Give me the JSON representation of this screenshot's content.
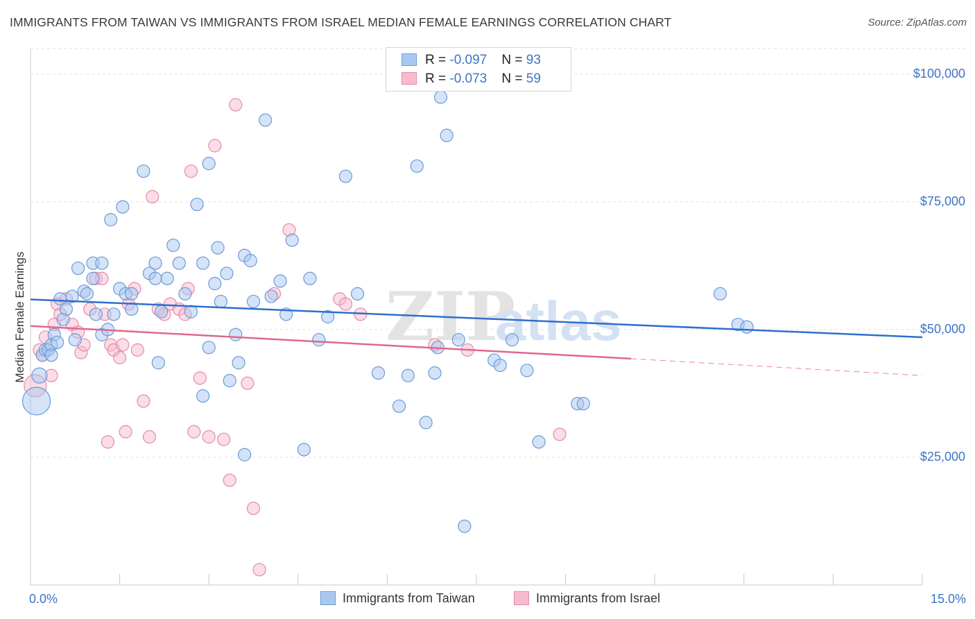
{
  "title": "IMMIGRANTS FROM TAIWAN VS IMMIGRANTS FROM ISRAEL MEDIAN FEMALE EARNINGS CORRELATION CHART",
  "source": "Source: ZipAtlas.com",
  "watermark": {
    "zip": "ZIP",
    "atlas": "atlas"
  },
  "legend": {
    "rows": [
      {
        "r_label": "R = ",
        "r_value": "-0.097",
        "n_label": "N = ",
        "n_value": "93"
      },
      {
        "r_label": "R = ",
        "r_value": "-0.073",
        "n_label": "N = ",
        "n_value": "59"
      }
    ]
  },
  "bottom_legend": [
    "Immigrants from Taiwan",
    "Immigrants from Israel"
  ],
  "chart_data": {
    "type": "scatter",
    "ylabel": "Median Female Earnings",
    "xlim": [
      0,
      15
    ],
    "ylim": [
      0,
      105000
    ],
    "x_tick_labels": [
      "0.0%",
      "15.0%"
    ],
    "y_ticks": [
      {
        "value": 25000,
        "label": "$25,000"
      },
      {
        "value": 50000,
        "label": "$50,000"
      },
      {
        "value": 75000,
        "label": "$75,000"
      },
      {
        "value": 100000,
        "label": "$100,000"
      }
    ],
    "colors": {
      "taiwan_fill": "#aac8ef",
      "taiwan_stroke": "#6a9ad8",
      "taiwan_line": "#2e6fce",
      "israel_fill": "#f6bccd",
      "israel_stroke": "#e58aa8",
      "israel_line": "#e0678f"
    },
    "series": [
      {
        "name": "Immigrants from Taiwan",
        "trend": {
          "x0": 0,
          "y0": 55900,
          "x1": 15,
          "y1": 48500
        },
        "points": [
          [
            0.1,
            36000,
            20
          ],
          [
            0.15,
            41000,
            11
          ],
          [
            0.2,
            45000,
            9
          ],
          [
            0.25,
            46000,
            9
          ],
          [
            0.3,
            46000,
            9
          ],
          [
            0.35,
            47000,
            9
          ],
          [
            0.35,
            45000,
            9
          ],
          [
            0.4,
            49000,
            9
          ],
          [
            0.45,
            47500,
            9
          ],
          [
            0.5,
            56000,
            9
          ],
          [
            0.55,
            52000,
            9
          ],
          [
            0.6,
            54000,
            9
          ],
          [
            0.7,
            56500,
            9
          ],
          [
            0.75,
            48000,
            9
          ],
          [
            0.8,
            62000,
            9
          ],
          [
            0.9,
            57500,
            9
          ],
          [
            0.95,
            57000,
            9
          ],
          [
            1.05,
            60000,
            9
          ],
          [
            1.05,
            63000,
            9
          ],
          [
            1.1,
            53000,
            9
          ],
          [
            1.2,
            49000,
            9
          ],
          [
            1.2,
            63000,
            9
          ],
          [
            1.3,
            50000,
            9
          ],
          [
            1.35,
            71500,
            9
          ],
          [
            1.4,
            53000,
            9
          ],
          [
            1.5,
            58000,
            9
          ],
          [
            1.55,
            74000,
            9
          ],
          [
            1.6,
            57000,
            9
          ],
          [
            1.7,
            57000,
            9
          ],
          [
            1.7,
            54000,
            9
          ],
          [
            1.9,
            81000,
            9
          ],
          [
            2.0,
            61000,
            9
          ],
          [
            2.1,
            63000,
            9
          ],
          [
            2.1,
            60000,
            9
          ],
          [
            2.15,
            43500,
            9
          ],
          [
            2.2,
            53500,
            9
          ],
          [
            2.3,
            60000,
            9
          ],
          [
            2.4,
            66500,
            9
          ],
          [
            2.5,
            63000,
            9
          ],
          [
            2.6,
            57000,
            9
          ],
          [
            2.7,
            53500,
            9
          ],
          [
            2.8,
            74500,
            9
          ],
          [
            2.9,
            63000,
            9
          ],
          [
            2.9,
            37000,
            9
          ],
          [
            3.0,
            82500,
            9
          ],
          [
            3.0,
            46500,
            9
          ],
          [
            3.1,
            59000,
            9
          ],
          [
            3.15,
            66000,
            9
          ],
          [
            3.2,
            55500,
            9
          ],
          [
            3.3,
            61000,
            9
          ],
          [
            3.35,
            40000,
            9
          ],
          [
            3.45,
            49000,
            9
          ],
          [
            3.5,
            43500,
            9
          ],
          [
            3.6,
            25500,
            9
          ],
          [
            3.6,
            64500,
            9
          ],
          [
            3.7,
            63500,
            9
          ],
          [
            3.75,
            55500,
            9
          ],
          [
            3.95,
            91000,
            9
          ],
          [
            4.05,
            56500,
            9
          ],
          [
            4.2,
            59500,
            9
          ],
          [
            4.3,
            53000,
            9
          ],
          [
            4.4,
            67500,
            9
          ],
          [
            4.6,
            26500,
            9
          ],
          [
            4.7,
            60000,
            9
          ],
          [
            4.85,
            48000,
            9
          ],
          [
            5.0,
            52500,
            9
          ],
          [
            5.3,
            80000,
            9
          ],
          [
            5.5,
            57000,
            9
          ],
          [
            5.85,
            41500,
            9
          ],
          [
            6.2,
            35000,
            9
          ],
          [
            6.35,
            41000,
            9
          ],
          [
            6.5,
            82000,
            9
          ],
          [
            6.65,
            31800,
            9
          ],
          [
            6.8,
            41500,
            9
          ],
          [
            6.85,
            46500,
            9
          ],
          [
            6.9,
            95500,
            9
          ],
          [
            7.0,
            88000,
            9
          ],
          [
            7.2,
            48000,
            9
          ],
          [
            7.3,
            11500,
            9
          ],
          [
            7.8,
            44000,
            9
          ],
          [
            7.9,
            43000,
            9
          ],
          [
            8.1,
            48000,
            9
          ],
          [
            8.35,
            42000,
            9
          ],
          [
            8.55,
            28000,
            9
          ],
          [
            9.2,
            35500,
            9
          ],
          [
            9.3,
            35500,
            9
          ],
          [
            11.6,
            57000,
            9
          ],
          [
            11.9,
            51000,
            9
          ],
          [
            12.05,
            50500,
            9
          ]
        ]
      },
      {
        "name": "Immigrants from Israel",
        "trend": {
          "x0": 0,
          "y0": 50700,
          "x1": 10.1,
          "y1": 44300,
          "dash_x1": 15,
          "dash_y1": 41000
        },
        "points": [
          [
            0.08,
            39000,
            16
          ],
          [
            0.15,
            46000,
            9
          ],
          [
            0.2,
            45000,
            9
          ],
          [
            0.25,
            48500,
            9
          ],
          [
            0.35,
            41000,
            9
          ],
          [
            0.4,
            51000,
            9
          ],
          [
            0.45,
            55000,
            9
          ],
          [
            0.5,
            53000,
            9
          ],
          [
            0.6,
            56000,
            9
          ],
          [
            0.7,
            51000,
            9
          ],
          [
            0.8,
            49500,
            9
          ],
          [
            0.85,
            45500,
            9
          ],
          [
            0.9,
            47000,
            9
          ],
          [
            1.0,
            54000,
            9
          ],
          [
            1.1,
            60000,
            9
          ],
          [
            1.2,
            60000,
            9
          ],
          [
            1.25,
            53000,
            9
          ],
          [
            1.3,
            28000,
            9
          ],
          [
            1.35,
            47000,
            9
          ],
          [
            1.4,
            46000,
            9
          ],
          [
            1.5,
            44500,
            9
          ],
          [
            1.55,
            47000,
            9
          ],
          [
            1.6,
            30000,
            9
          ],
          [
            1.65,
            55000,
            9
          ],
          [
            1.75,
            58000,
            9
          ],
          [
            1.8,
            46000,
            9
          ],
          [
            1.9,
            36000,
            9
          ],
          [
            2.0,
            29000,
            9
          ],
          [
            2.05,
            76000,
            9
          ],
          [
            2.15,
            54000,
            9
          ],
          [
            2.25,
            53000,
            9
          ],
          [
            2.35,
            55000,
            9
          ],
          [
            2.5,
            54000,
            9
          ],
          [
            2.6,
            53000,
            9
          ],
          [
            2.65,
            58000,
            9
          ],
          [
            2.7,
            81000,
            9
          ],
          [
            2.75,
            30000,
            9
          ],
          [
            2.85,
            40500,
            9
          ],
          [
            3.0,
            29000,
            9
          ],
          [
            3.1,
            86000,
            9
          ],
          [
            3.25,
            28500,
            9
          ],
          [
            3.35,
            20500,
            9
          ],
          [
            3.45,
            94000,
            9
          ],
          [
            3.65,
            39500,
            9
          ],
          [
            3.75,
            15000,
            9
          ],
          [
            3.85,
            3000,
            9
          ],
          [
            4.1,
            57000,
            9
          ],
          [
            4.35,
            69500,
            9
          ],
          [
            5.2,
            56000,
            9
          ],
          [
            5.3,
            55000,
            9
          ],
          [
            5.55,
            53000,
            9
          ],
          [
            6.8,
            47000,
            9
          ],
          [
            7.35,
            46000,
            9
          ],
          [
            8.9,
            29500,
            9
          ]
        ]
      }
    ]
  }
}
